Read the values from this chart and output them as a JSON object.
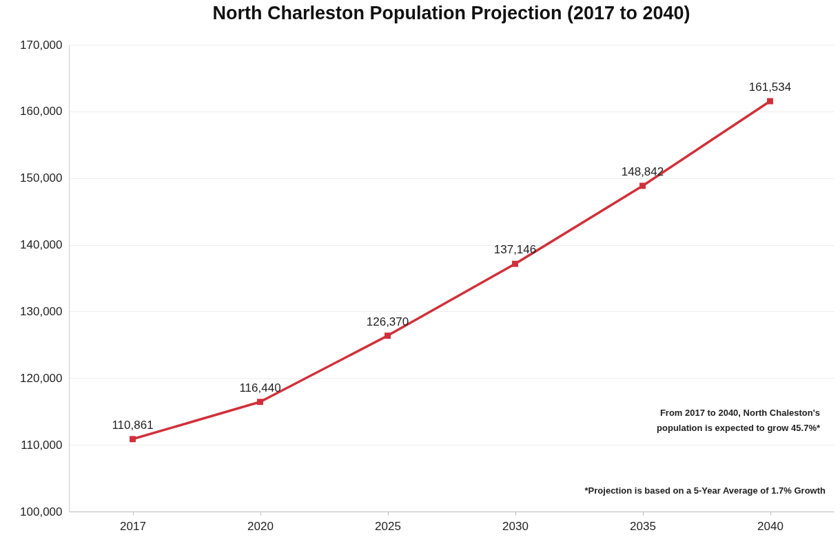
{
  "chart_data": {
    "type": "line",
    "title": "North Charleston Population Projection (2017 to 2040)",
    "categories": [
      "2017",
      "2020",
      "2025",
      "2030",
      "2035",
      "2040"
    ],
    "series": [
      {
        "color": "#d0303a",
        "values": [
          110861,
          116440,
          126370,
          137146,
          148842,
          161534
        ],
        "value_labels": [
          "110,861",
          "116,440",
          "126,370",
          "137,146",
          "148,842",
          "161,534"
        ]
      }
    ],
    "ylim": [
      100000,
      170000
    ],
    "yticks": [
      {
        "value": 100000,
        "label": "100,000"
      },
      {
        "value": 110000,
        "label": "110,000"
      },
      {
        "value": 120000,
        "label": "120,000"
      },
      {
        "value": 130000,
        "label": "130,000"
      },
      {
        "value": 140000,
        "label": "140,000"
      },
      {
        "value": 150000,
        "label": "150,000"
      },
      {
        "value": 160000,
        "label": "160,000"
      },
      {
        "value": 170000,
        "label": "170,000"
      }
    ],
    "grid": "y",
    "marker": "square",
    "line_style": "solid",
    "legend": false,
    "annotations": [
      "From 2017 to 2040, North Chaleston's",
      "population is expected to grow 45.7%*",
      "*Projection is based on a 5-Year Average of 1.7% Growth"
    ]
  }
}
